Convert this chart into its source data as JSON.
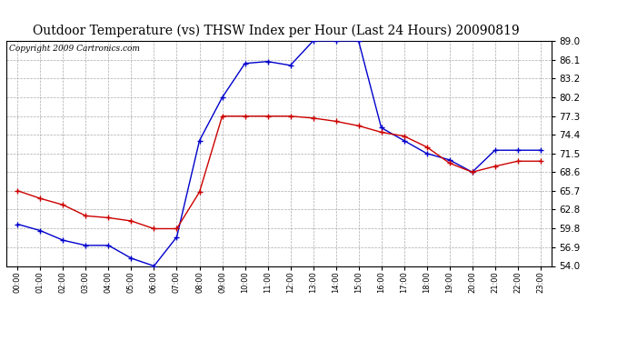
{
  "title": "Outdoor Temperature (vs) THSW Index per Hour (Last 24 Hours) 20090819",
  "copyright": "Copyright 2009 Cartronics.com",
  "hours": [
    "00:00",
    "01:00",
    "02:00",
    "03:00",
    "04:00",
    "05:00",
    "06:00",
    "07:00",
    "08:00",
    "09:00",
    "10:00",
    "11:00",
    "12:00",
    "13:00",
    "14:00",
    "15:00",
    "16:00",
    "17:00",
    "18:00",
    "19:00",
    "20:00",
    "21:00",
    "22:00",
    "23:00"
  ],
  "temp": [
    65.7,
    64.5,
    63.5,
    61.8,
    61.5,
    61.0,
    59.8,
    59.8,
    65.5,
    77.3,
    77.3,
    77.3,
    77.3,
    77.0,
    76.5,
    75.8,
    74.8,
    74.2,
    72.5,
    70.0,
    68.6,
    69.5,
    70.3,
    70.3
  ],
  "thsw": [
    60.5,
    59.5,
    58.0,
    57.2,
    57.2,
    55.2,
    54.0,
    58.5,
    73.5,
    80.2,
    85.5,
    85.8,
    85.2,
    89.0,
    89.0,
    89.0,
    75.5,
    73.5,
    71.5,
    70.5,
    68.6,
    72.0,
    72.0,
    72.0
  ],
  "y_ticks": [
    54.0,
    56.9,
    59.8,
    62.8,
    65.7,
    68.6,
    71.5,
    74.4,
    77.3,
    80.2,
    83.2,
    86.1,
    89.0
  ],
  "y_min": 54.0,
  "y_max": 89.0,
  "temp_color": "#cc0000",
  "thsw_color": "#0000cc",
  "bg_color": "#ffffff",
  "grid_color": "#aaaaaa",
  "title_fontsize": 10,
  "copyright_fontsize": 6.5
}
